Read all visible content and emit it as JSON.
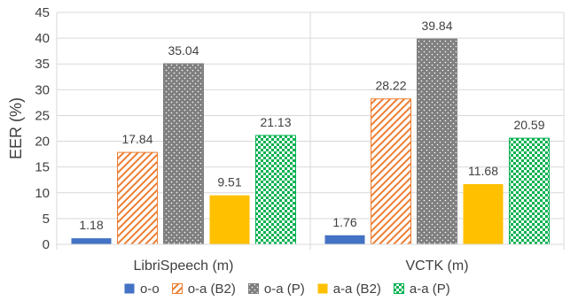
{
  "chart_data": {
    "type": "bar",
    "categories": [
      "LibriSpeech (m)",
      "VCTK (m)"
    ],
    "series": [
      {
        "name": "o-o",
        "values": [
          1.18,
          1.76
        ],
        "color": "#4472c4",
        "pattern": "solid"
      },
      {
        "name": "o-a (B2)",
        "values": [
          17.84,
          28.22
        ],
        "color": "#ed7d31",
        "pattern": "diagonal-stripes"
      },
      {
        "name": "o-a (P)",
        "values": [
          35.04,
          39.84
        ],
        "color": "#7f7f7f",
        "pattern": "dots"
      },
      {
        "name": "a-a (B2)",
        "values": [
          9.51,
          11.68
        ],
        "color": "#ffc000",
        "pattern": "solid"
      },
      {
        "name": "a-a (P)",
        "values": [
          21.13,
          20.59
        ],
        "color": "#00b050",
        "pattern": "checker"
      }
    ],
    "ylabel": "EER (%)",
    "xlabel": "",
    "ylim": [
      0,
      45
    ],
    "yticks": [
      0,
      5,
      10,
      15,
      20,
      25,
      30,
      35,
      40,
      45
    ],
    "grid": true,
    "legend_position": "bottom",
    "data_labels": true
  }
}
